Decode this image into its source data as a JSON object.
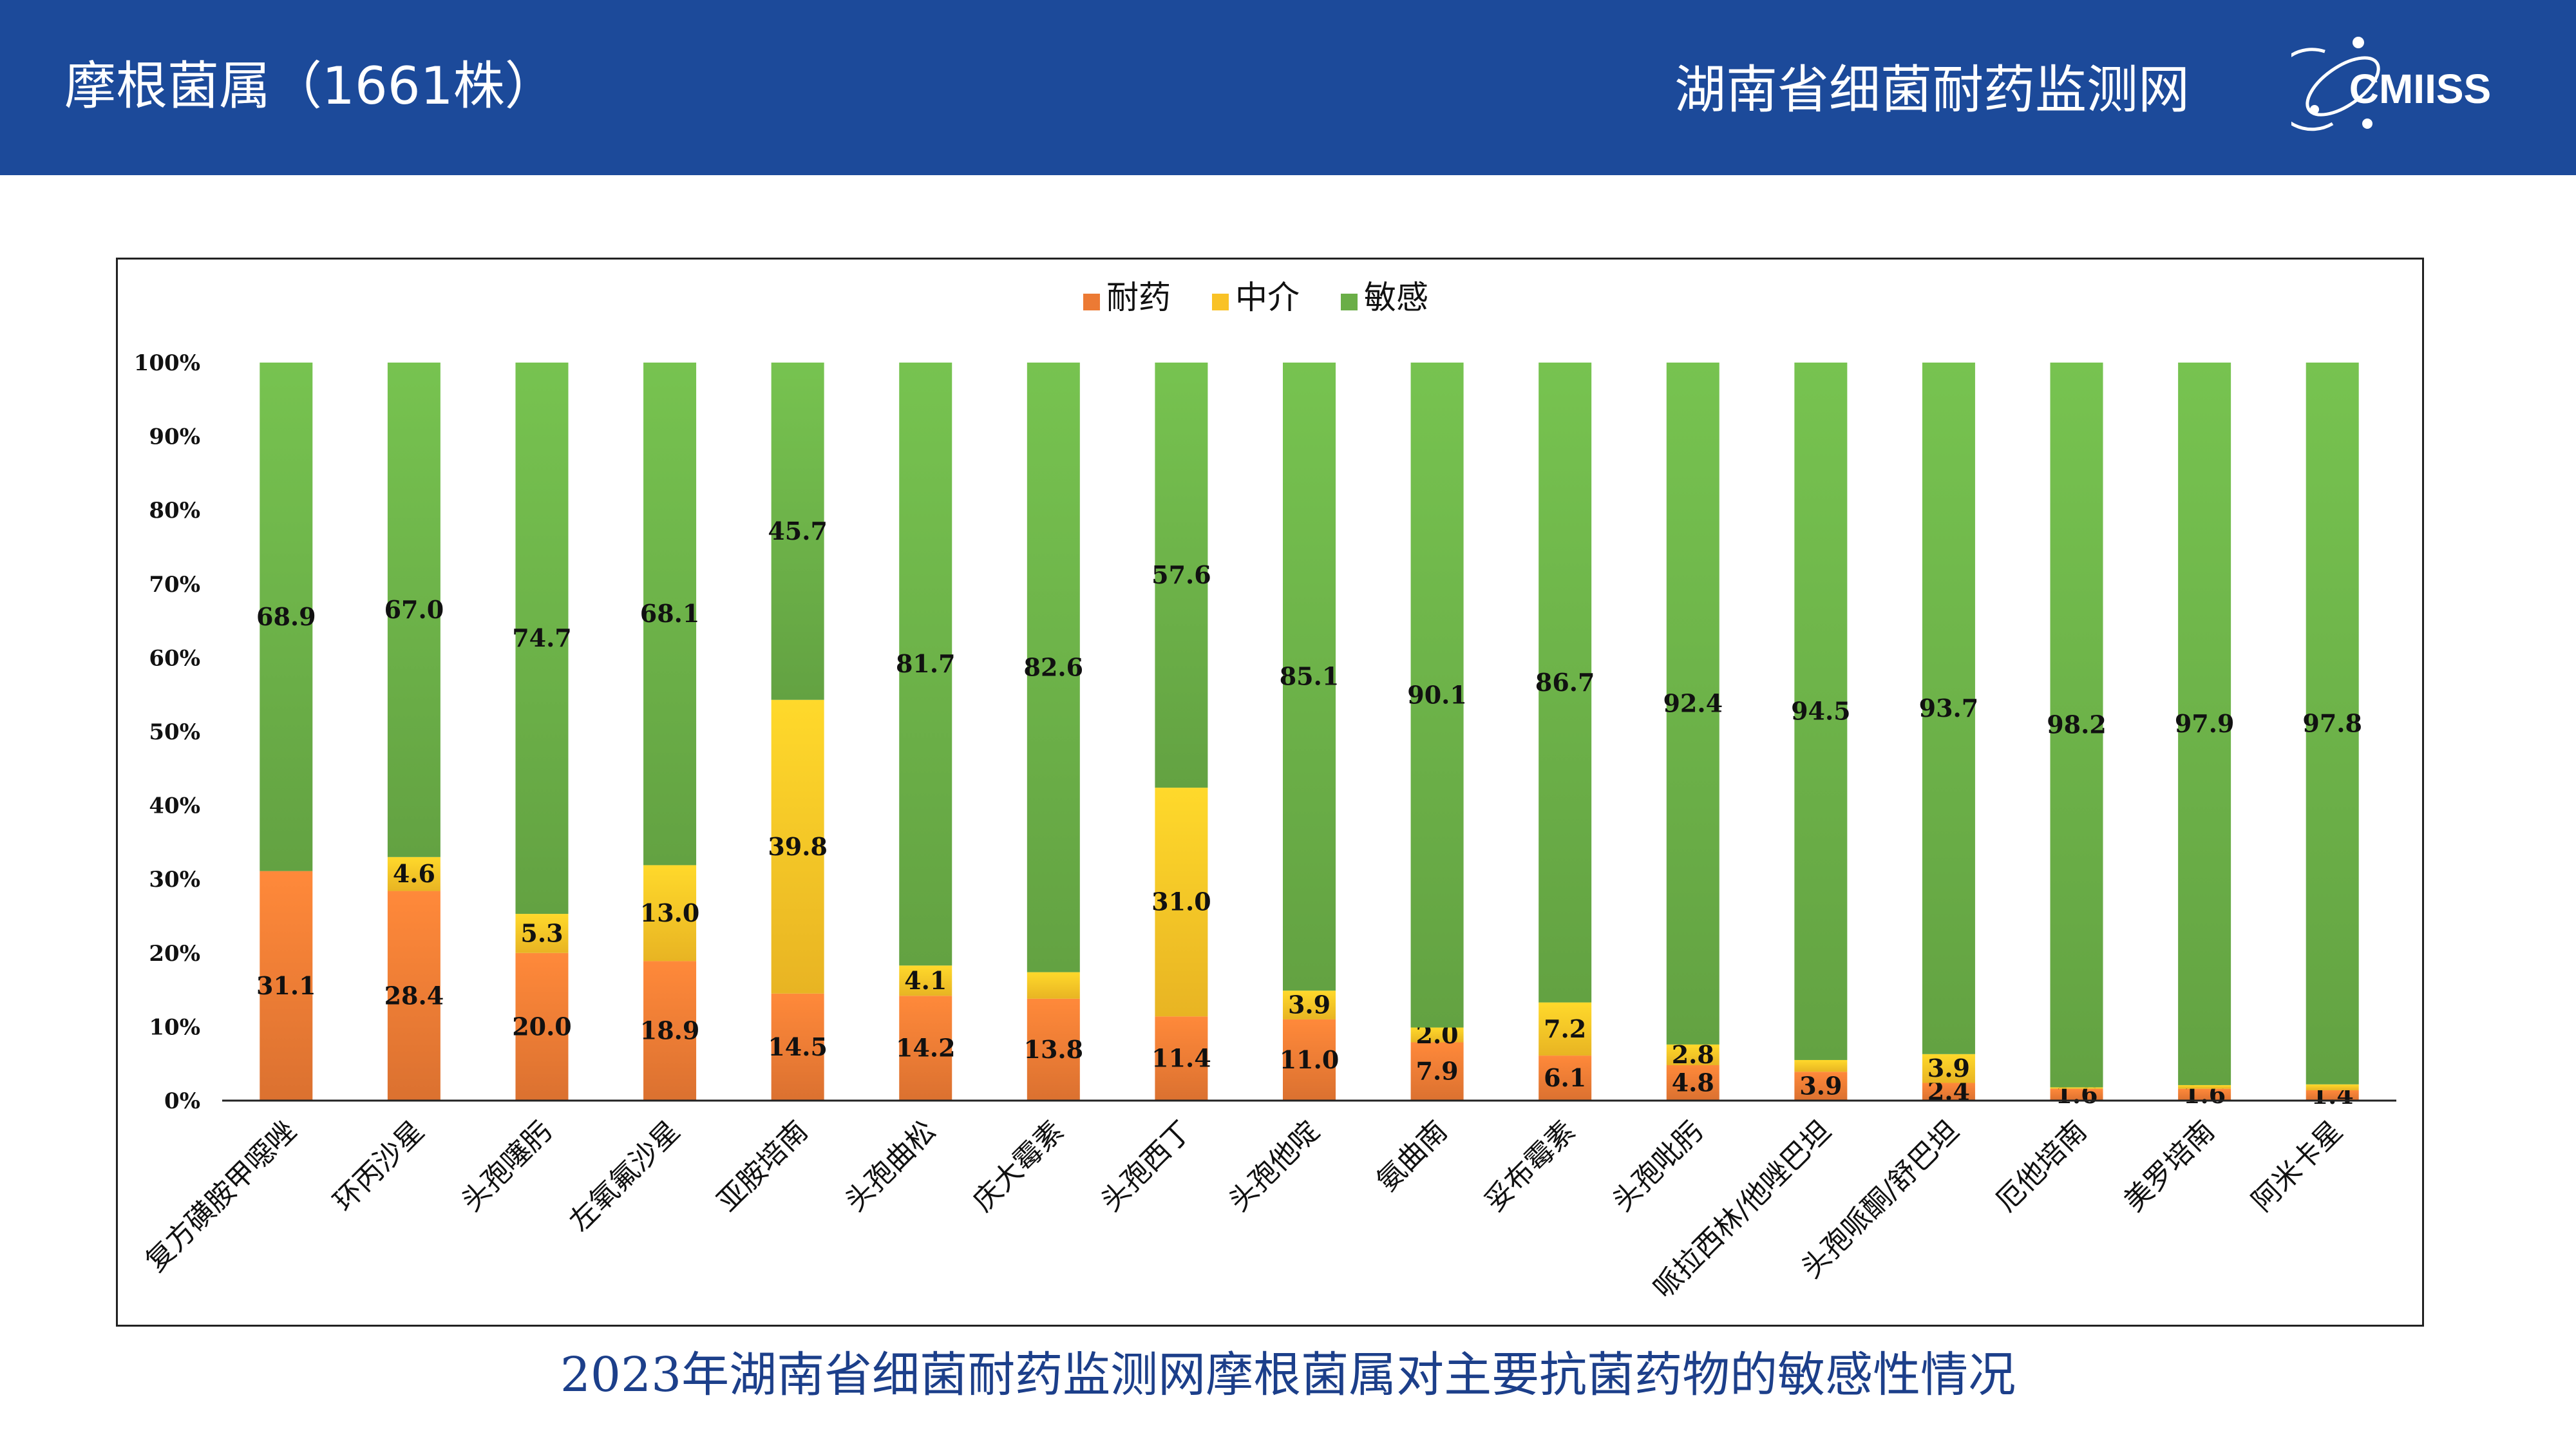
{
  "header": {
    "title": "摩根菌属（1661株）",
    "network": "湖南省细菌耐药监测网",
    "logo_text": "CMIISS",
    "background_color": "#1c4a9a"
  },
  "caption": "2023年湖南省细菌耐药监测网摩根菌属对主要抗菌药物的敏感性情况",
  "chart_data": {
    "type": "bar",
    "stacked": true,
    "orientation": "vertical",
    "categories": [
      "复方磺胺甲噁唑",
      "环丙沙星",
      "头孢噻肟",
      "左氧氟沙星",
      "亚胺培南",
      "头孢曲松",
      "庆大霉素",
      "头孢西丁",
      "头孢他啶",
      "氨曲南",
      "妥布霉素",
      "头孢吡肟",
      "哌拉西林/他唑巴坦",
      "头孢哌酮/舒巴坦",
      "厄他培南",
      "美罗培南",
      "阿米卡星"
    ],
    "series": [
      {
        "name": "耐药",
        "color": "#ec7a34",
        "values": [
          31.1,
          28.4,
          20.0,
          18.9,
          14.5,
          14.2,
          13.8,
          11.4,
          11.0,
          7.9,
          6.1,
          4.8,
          3.9,
          2.4,
          1.6,
          1.6,
          1.4
        ],
        "labels": [
          "31.1",
          "28.4",
          "20.0",
          "18.9",
          "14.5",
          "14.2",
          "13.8",
          "11.4",
          "11.0",
          "7.9",
          "6.1",
          "4.8",
          "3.9",
          "2.4",
          "1.6",
          "1.6",
          "1.4"
        ]
      },
      {
        "name": "中介",
        "color": "#f9c226",
        "values": [
          0.0,
          4.6,
          5.3,
          13.0,
          39.8,
          4.1,
          3.6,
          31.0,
          3.9,
          2.0,
          7.2,
          2.8,
          1.6,
          3.9,
          0.2,
          0.5,
          0.8
        ],
        "labels": [
          "",
          "4.6",
          "5.3",
          "13.0",
          "39.8",
          "4.1",
          "",
          "31.0",
          "3.9",
          "2.0",
          "7.2",
          "2.8",
          "",
          "3.9",
          "",
          "",
          ""
        ]
      },
      {
        "name": "敏感",
        "color": "#6aae47",
        "values": [
          68.9,
          67.0,
          74.7,
          68.1,
          45.7,
          81.7,
          82.6,
          57.6,
          85.1,
          90.1,
          86.7,
          92.4,
          94.5,
          93.7,
          98.2,
          97.9,
          97.8
        ],
        "labels": [
          "68.9",
          "67.0",
          "74.7",
          "68.1",
          "45.7",
          "81.7",
          "82.6",
          "57.6",
          "85.1",
          "90.1",
          "86.7",
          "92.4",
          "94.5",
          "93.7",
          "98.2",
          "97.9",
          "97.8"
        ]
      }
    ],
    "y_ticks": [
      "0%",
      "10%",
      "20%",
      "30%",
      "40%",
      "50%",
      "60%",
      "70%",
      "80%",
      "90%",
      "100%"
    ],
    "ylim": [
      0,
      100
    ],
    "legend_position": "top-center",
    "grid": false
  }
}
